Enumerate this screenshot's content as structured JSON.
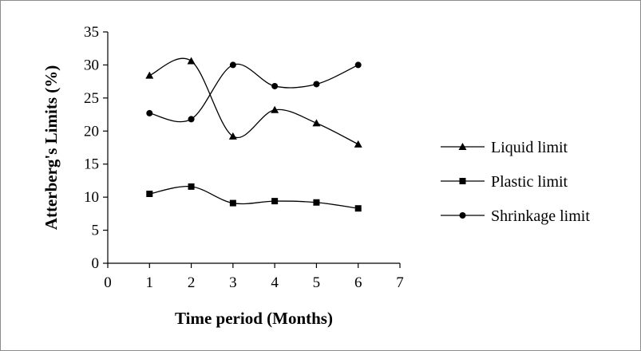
{
  "chart_data": {
    "type": "line",
    "xlabel": "Time period (Months)",
    "ylabel": "Atterberg's Limits (%)",
    "xlim": [
      0,
      7
    ],
    "ylim": [
      0,
      35
    ],
    "xticks": [
      0,
      1,
      2,
      3,
      4,
      5,
      6,
      7
    ],
    "yticks": [
      0,
      5,
      10,
      15,
      20,
      25,
      30,
      35
    ],
    "grid": false,
    "legend_position": "right",
    "smooth": true,
    "x": [
      1,
      2,
      3,
      4,
      5,
      6
    ],
    "series": [
      {
        "name": "Liquid limit",
        "marker": "triangle",
        "color": "#000000",
        "values": [
          28.4,
          30.6,
          19.2,
          23.2,
          21.2,
          18.0
        ]
      },
      {
        "name": "Plastic limit",
        "marker": "square",
        "color": "#000000",
        "values": [
          10.5,
          11.6,
          9.1,
          9.4,
          9.2,
          8.3
        ]
      },
      {
        "name": "Shrinkage limit",
        "marker": "circle",
        "color": "#000000",
        "values": [
          22.7,
          21.8,
          30.0,
          26.8,
          27.1,
          30.0
        ]
      }
    ]
  }
}
